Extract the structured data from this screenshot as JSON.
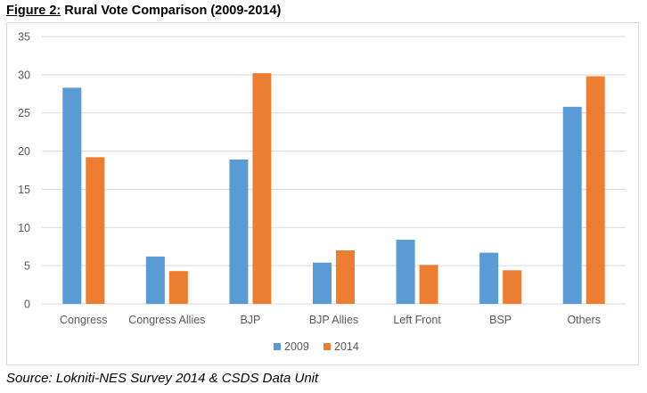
{
  "figure": {
    "label": "Figure 2:",
    "title": "Rural Vote Comparison (2009-2014)"
  },
  "source": "Source: Lokniti-NES Survey 2014 & CSDS Data Unit",
  "colors": {
    "2009": "#5b9bd5",
    "2014": "#ed7d31",
    "grid": "#d9d9d9",
    "text": "#595959"
  },
  "chart_data": {
    "type": "bar",
    "title": "",
    "xlabel": "",
    "ylabel": "",
    "ylim": [
      0,
      35
    ],
    "yticks": [
      0,
      5,
      10,
      15,
      20,
      25,
      30,
      35
    ],
    "grid": true,
    "legend_position": "bottom",
    "categories": [
      "Congress",
      "Congress Allies",
      "BJP",
      "BJP Allies",
      "Left Front",
      "BSP",
      "Others"
    ],
    "series": [
      {
        "name": "2009",
        "color": "#5b9bd5",
        "values": [
          28.3,
          6.2,
          18.9,
          5.4,
          8.4,
          6.7,
          25.8
        ]
      },
      {
        "name": "2014",
        "color": "#ed7d31",
        "values": [
          19.2,
          4.3,
          30.2,
          7.0,
          5.1,
          4.4,
          29.8
        ]
      }
    ]
  }
}
